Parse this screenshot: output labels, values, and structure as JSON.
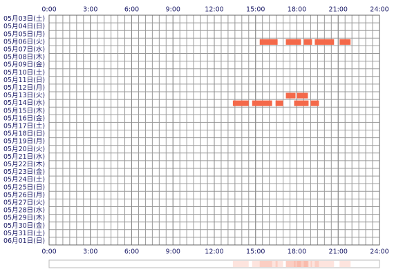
{
  "chart_data": {
    "type": "timeline",
    "categories": [
      "05月03日(土)",
      "05月04日(日)",
      "05月05日(月)",
      "05月06日(火)",
      "05月07日(水)",
      "05月08日(木)",
      "05月09日(金)",
      "05月10日(土)",
      "05月11日(日)",
      "05月12日(月)",
      "05月13日(火)",
      "05月14日(水)",
      "05月15日(木)",
      "05月16日(金)",
      "05月17日(土)",
      "05月18日(日)",
      "05月19日(月)",
      "05月20日(火)",
      "05月21日(水)",
      "05月22日(木)",
      "05月23日(金)",
      "05月24日(土)",
      "05月25日(日)",
      "05月26日(月)",
      "05月27日(火)",
      "05月28日(水)",
      "05月29日(木)",
      "05月30日(金)",
      "05月31日(土)",
      "06月01日(日)"
    ],
    "values": [
      [],
      [],
      [],
      [
        [
          15.3,
          16.6
        ],
        [
          17.2,
          18.3
        ],
        [
          18.5,
          19.1
        ],
        [
          19.3,
          20.7
        ],
        [
          21.1,
          21.9
        ]
      ],
      [],
      [],
      [],
      [],
      [],
      [],
      [
        [
          17.2,
          17.9
        ],
        [
          18.0,
          18.8
        ]
      ],
      [
        [
          13.35,
          14.5
        ],
        [
          14.75,
          16.2
        ],
        [
          16.45,
          17.0
        ],
        [
          17.8,
          18.85
        ],
        [
          19.0,
          19.6
        ]
      ],
      [],
      [],
      [],
      [],
      [],
      [],
      [],
      [],
      [],
      [],
      [],
      [],
      [],
      [],
      [],
      [],
      [],
      []
    ],
    "color": "#f4694a",
    "xlim": [
      0,
      24
    ],
    "xticks": [
      {
        "value": 0,
        "label": "0:00"
      },
      {
        "value": 3,
        "label": "3:00"
      },
      {
        "value": 6,
        "label": "6:00"
      },
      {
        "value": 9,
        "label": "9:00"
      },
      {
        "value": 12,
        "label": "12:00"
      },
      {
        "value": 15,
        "label": "15:00"
      },
      {
        "value": 18,
        "label": "18:00"
      },
      {
        "value": 21,
        "label": "21:00"
      },
      {
        "value": 24,
        "label": "24:00"
      }
    ],
    "grid": true
  }
}
